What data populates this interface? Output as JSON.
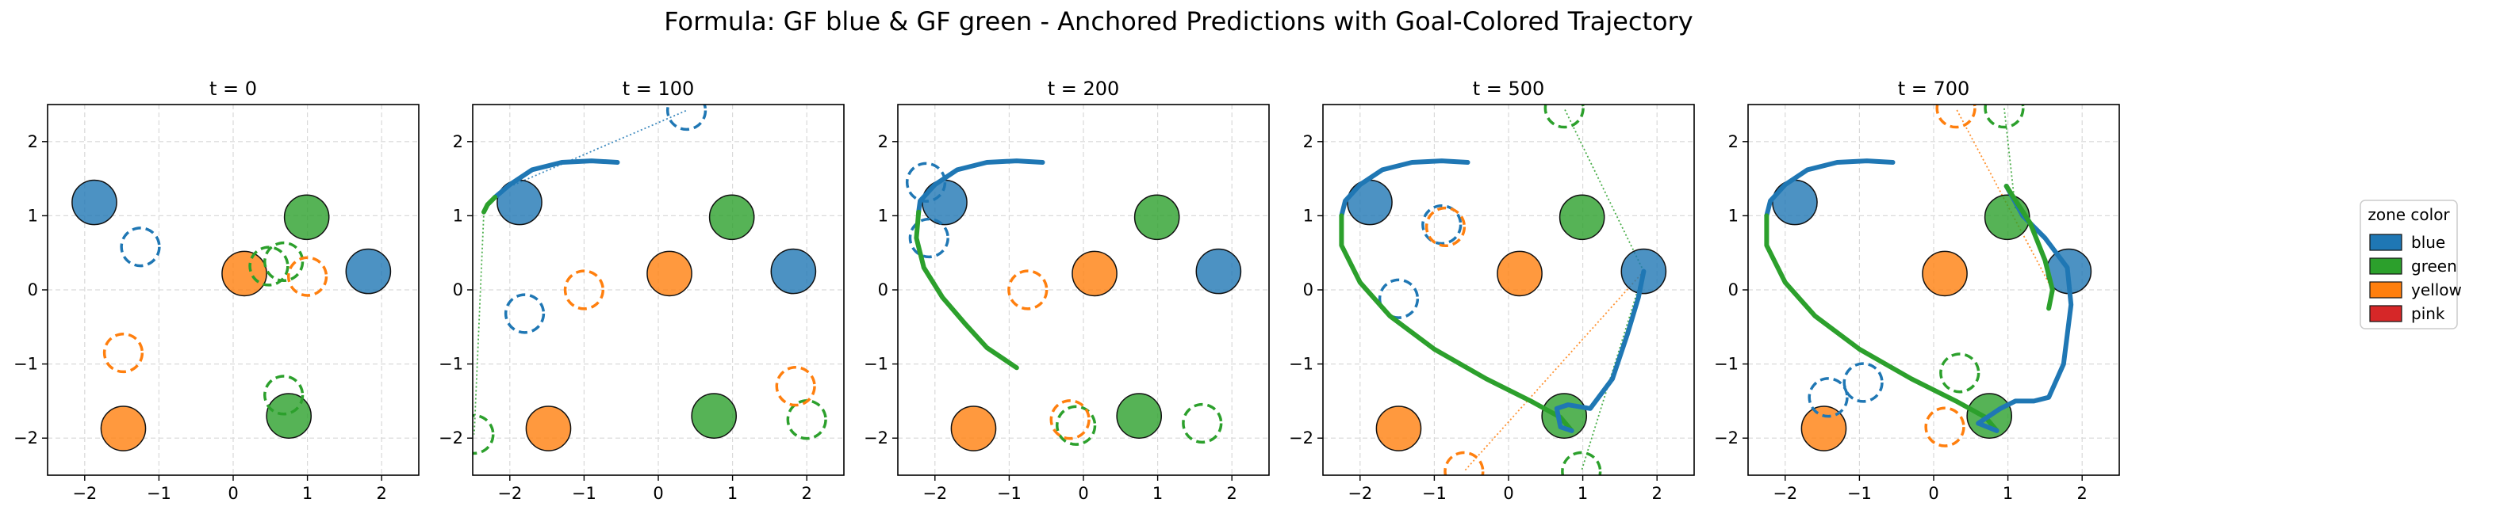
{
  "figure": {
    "suptitle": "Formula: GF blue & GF green - Anchored Predictions with Goal-Colored Trajectory"
  },
  "colors": {
    "blue": "#1f77b4",
    "green": "#2ca02c",
    "yellow": "#ff7f0e",
    "pink": "#d62728",
    "grid": "#d9d9d9"
  },
  "legend": {
    "title": "zone color",
    "placement": "right",
    "entries": [
      {
        "label": "blue",
        "color": "#1f77b4"
      },
      {
        "label": "green",
        "color": "#2ca02c"
      },
      {
        "label": "yellow",
        "color": "#ff7f0e"
      },
      {
        "label": "pink",
        "color": "#d62728"
      }
    ]
  },
  "chart_data": {
    "type": "scatter",
    "xlim": [
      -2.5,
      2.5
    ],
    "ylim": [
      -2.5,
      2.5
    ],
    "xticks": [
      -2,
      -1,
      0,
      1,
      2
    ],
    "yticks": [
      -2,
      -1,
      0,
      1,
      2
    ],
    "grid": true,
    "zone_radius": 0.3,
    "zones": [
      {
        "color": "blue",
        "x": -1.87,
        "y": 1.18
      },
      {
        "color": "blue",
        "x": 1.82,
        "y": 0.25
      },
      {
        "color": "green",
        "x": 0.99,
        "y": 0.98
      },
      {
        "color": "green",
        "x": 0.75,
        "y": -1.7
      },
      {
        "color": "yellow",
        "x": 0.15,
        "y": 0.22
      },
      {
        "color": "yellow",
        "x": -1.48,
        "y": -1.87
      }
    ],
    "panels": [
      {
        "title": "t = 0",
        "predicted_zones": [
          {
            "color": "blue",
            "x": -1.25,
            "y": 0.58
          },
          {
            "color": "green",
            "x": 0.48,
            "y": 0.32
          },
          {
            "color": "green",
            "x": 0.68,
            "y": 0.38
          },
          {
            "color": "green",
            "x": 0.68,
            "y": -1.42
          },
          {
            "color": "yellow",
            "x": 1.0,
            "y": 0.18
          },
          {
            "color": "yellow",
            "x": -1.48,
            "y": -0.85
          }
        ],
        "trajectory": [],
        "anchor_lines": []
      },
      {
        "title": "t = 100",
        "predicted_zones": [
          {
            "color": "blue",
            "x": 0.38,
            "y": 2.42
          },
          {
            "color": "blue",
            "x": -1.8,
            "y": -0.32
          },
          {
            "color": "green",
            "x": -2.48,
            "y": -1.95
          },
          {
            "color": "green",
            "x": 2.0,
            "y": -1.75
          },
          {
            "color": "yellow",
            "x": -1.0,
            "y": 0.0
          },
          {
            "color": "yellow",
            "x": 1.85,
            "y": -1.3
          }
        ],
        "trajectory": [
          {
            "color": "blue",
            "points": [
              [
                -0.55,
                1.72
              ],
              [
                -0.9,
                1.74
              ],
              [
                -1.3,
                1.72
              ],
              [
                -1.7,
                1.62
              ],
              [
                -2.0,
                1.42
              ],
              [
                -2.2,
                1.25
              ]
            ]
          },
          {
            "color": "green",
            "points": [
              [
                -2.2,
                1.25
              ],
              [
                -2.3,
                1.15
              ],
              [
                -2.35,
                1.05
              ]
            ]
          }
        ],
        "anchor_lines": [
          {
            "color": "blue",
            "from": [
              -2.1,
              1.35
            ],
            "to": [
              0.38,
              2.42
            ]
          },
          {
            "color": "green",
            "from": [
              -2.35,
              1.05
            ],
            "to": [
              -2.48,
              -1.95
            ]
          }
        ]
      },
      {
        "title": "t = 200",
        "predicted_zones": [
          {
            "color": "blue",
            "x": -2.12,
            "y": 1.45
          },
          {
            "color": "blue",
            "x": -2.08,
            "y": 0.7
          },
          {
            "color": "green",
            "x": -0.1,
            "y": -1.83
          },
          {
            "color": "green",
            "x": 1.6,
            "y": -1.8
          },
          {
            "color": "yellow",
            "x": -0.75,
            "y": 0.0
          },
          {
            "color": "yellow",
            "x": -0.18,
            "y": -1.75
          }
        ],
        "trajectory": [
          {
            "color": "blue",
            "points": [
              [
                -0.55,
                1.72
              ],
              [
                -0.9,
                1.74
              ],
              [
                -1.3,
                1.72
              ],
              [
                -1.7,
                1.62
              ],
              [
                -2.0,
                1.42
              ],
              [
                -2.2,
                1.2
              ],
              [
                -2.22,
                1.05
              ]
            ]
          },
          {
            "color": "green",
            "points": [
              [
                -2.22,
                1.05
              ],
              [
                -2.25,
                0.7
              ],
              [
                -2.15,
                0.3
              ],
              [
                -1.9,
                -0.1
              ],
              [
                -1.6,
                -0.45
              ],
              [
                -1.3,
                -0.78
              ],
              [
                -0.9,
                -1.05
              ]
            ]
          }
        ],
        "anchor_lines": []
      },
      {
        "title": "t = 500",
        "predicted_zones": [
          {
            "color": "blue",
            "x": -0.9,
            "y": 0.88
          },
          {
            "color": "blue",
            "x": -1.48,
            "y": -0.12
          },
          {
            "color": "yellow",
            "x": -0.85,
            "y": 0.85
          },
          {
            "color": "yellow",
            "x": -0.6,
            "y": -2.45
          },
          {
            "color": "green",
            "x": 0.75,
            "y": 2.45
          },
          {
            "color": "green",
            "x": 0.98,
            "y": -2.45
          }
        ],
        "trajectory": [
          {
            "color": "blue",
            "points": [
              [
                -0.55,
                1.72
              ],
              [
                -0.9,
                1.74
              ],
              [
                -1.3,
                1.72
              ],
              [
                -1.7,
                1.62
              ],
              [
                -2.0,
                1.42
              ],
              [
                -2.2,
                1.2
              ],
              [
                -2.25,
                1.0
              ]
            ]
          },
          {
            "color": "green",
            "points": [
              [
                -2.25,
                1.0
              ],
              [
                -2.25,
                0.6
              ],
              [
                -2.0,
                0.1
              ],
              [
                -1.6,
                -0.35
              ],
              [
                -1.0,
                -0.8
              ],
              [
                -0.3,
                -1.2
              ],
              [
                0.3,
                -1.5
              ],
              [
                0.7,
                -1.72
              ],
              [
                0.85,
                -1.9
              ]
            ]
          },
          {
            "color": "blue",
            "points": [
              [
                0.85,
                -1.9
              ],
              [
                0.7,
                -1.85
              ],
              [
                0.65,
                -1.6
              ],
              [
                0.8,
                -1.55
              ],
              [
                1.1,
                -1.6
              ],
              [
                1.4,
                -1.2
              ],
              [
                1.6,
                -0.6
              ],
              [
                1.75,
                -0.1
              ],
              [
                1.82,
                0.25
              ]
            ]
          }
        ],
        "anchor_lines": [
          {
            "color": "green",
            "from": [
              1.82,
              0.25
            ],
            "to": [
              0.75,
              2.45
            ]
          },
          {
            "color": "green",
            "from": [
              1.82,
              0.25
            ],
            "to": [
              0.98,
              -2.45
            ]
          },
          {
            "color": "yellow",
            "from": [
              1.82,
              0.25
            ],
            "to": [
              -0.6,
              -2.45
            ]
          }
        ]
      },
      {
        "title": "t = 700",
        "predicted_zones": [
          {
            "color": "blue",
            "x": -1.42,
            "y": -1.45
          },
          {
            "color": "blue",
            "x": -0.95,
            "y": -1.25
          },
          {
            "color": "green",
            "x": 0.35,
            "y": -1.12
          },
          {
            "color": "green",
            "x": 0.95,
            "y": 2.45
          },
          {
            "color": "yellow",
            "x": 0.15,
            "y": -1.85
          },
          {
            "color": "yellow",
            "x": 0.3,
            "y": 2.45
          }
        ],
        "trajectory": [
          {
            "color": "blue",
            "points": [
              [
                -0.55,
                1.72
              ],
              [
                -0.9,
                1.74
              ],
              [
                -1.3,
                1.72
              ],
              [
                -1.7,
                1.62
              ],
              [
                -2.0,
                1.42
              ],
              [
                -2.2,
                1.2
              ],
              [
                -2.25,
                1.0
              ]
            ]
          },
          {
            "color": "green",
            "points": [
              [
                -2.25,
                1.0
              ],
              [
                -2.25,
                0.6
              ],
              [
                -2.0,
                0.1
              ],
              [
                -1.6,
                -0.35
              ],
              [
                -1.0,
                -0.8
              ],
              [
                -0.3,
                -1.2
              ],
              [
                0.3,
                -1.5
              ],
              [
                0.7,
                -1.72
              ],
              [
                0.85,
                -1.9
              ]
            ]
          },
          {
            "color": "blue",
            "points": [
              [
                0.85,
                -1.9
              ],
              [
                0.6,
                -1.8
              ],
              [
                0.9,
                -1.6
              ],
              [
                1.1,
                -1.5
              ],
              [
                1.35,
                -1.5
              ],
              [
                1.55,
                -1.45
              ],
              [
                1.75,
                -1.0
              ],
              [
                1.85,
                -0.2
              ],
              [
                1.8,
                0.3
              ],
              [
                1.5,
                0.7
              ],
              [
                1.2,
                1.0
              ],
              [
                0.98,
                1.4
              ]
            ]
          },
          {
            "color": "green",
            "points": [
              [
                0.98,
                1.4
              ],
              [
                1.3,
                0.9
              ],
              [
                1.5,
                0.4
              ],
              [
                1.6,
                0.0
              ],
              [
                1.55,
                -0.25
              ]
            ]
          }
        ],
        "anchor_lines": [
          {
            "color": "yellow",
            "from": [
              1.6,
              0.0
            ],
            "to": [
              0.3,
              2.45
            ]
          },
          {
            "color": "green",
            "from": [
              1.1,
              1.1
            ],
            "to": [
              0.95,
              2.45
            ]
          }
        ]
      }
    ]
  }
}
